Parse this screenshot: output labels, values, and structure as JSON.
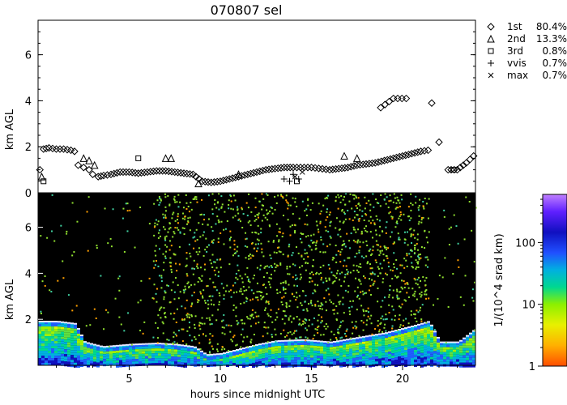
{
  "chart_data": [
    {
      "type": "scatter",
      "title": "070807 sel",
      "xlabel": "",
      "ylabel": "km AGL",
      "xlim": [
        0,
        24
      ],
      "ylim": [
        0,
        7.5
      ],
      "y_ticks": [
        0,
        2,
        4,
        6
      ],
      "grid": false,
      "legend_position": "top-right",
      "series": [
        {
          "name": "1st",
          "percent": "80.4%",
          "marker": "diamond",
          "points": [
            [
              0.1,
              1.0
            ],
            [
              0.3,
              1.9
            ],
            [
              0.6,
              1.95
            ],
            [
              1.0,
              1.9
            ],
            [
              1.4,
              1.9
            ],
            [
              1.8,
              1.85
            ],
            [
              2.0,
              1.8
            ],
            [
              2.2,
              1.2
            ],
            [
              2.5,
              1.1
            ],
            [
              2.8,
              1.0
            ],
            [
              3.0,
              0.8
            ],
            [
              3.3,
              0.7
            ],
            [
              3.6,
              0.75
            ],
            [
              4.0,
              0.8
            ],
            [
              4.5,
              0.9
            ],
            [
              5.0,
              0.9
            ],
            [
              5.5,
              0.85
            ],
            [
              6.0,
              0.9
            ],
            [
              6.5,
              0.95
            ],
            [
              7.0,
              0.95
            ],
            [
              7.5,
              0.9
            ],
            [
              8.0,
              0.85
            ],
            [
              8.5,
              0.8
            ],
            [
              9.0,
              0.5
            ],
            [
              9.5,
              0.45
            ],
            [
              10.0,
              0.5
            ],
            [
              10.5,
              0.6
            ],
            [
              11.0,
              0.7
            ],
            [
              11.5,
              0.8
            ],
            [
              12.0,
              0.9
            ],
            [
              12.5,
              1.0
            ],
            [
              13.0,
              1.05
            ],
            [
              13.5,
              1.1
            ],
            [
              14.0,
              1.1
            ],
            [
              15.0,
              1.1
            ],
            [
              16.0,
              1.0
            ],
            [
              16.5,
              1.05
            ],
            [
              17.0,
              1.1
            ],
            [
              17.5,
              1.2
            ],
            [
              18.0,
              1.25
            ],
            [
              18.5,
              1.3
            ],
            [
              19.0,
              1.4
            ],
            [
              19.5,
              1.5
            ],
            [
              20.0,
              1.6
            ],
            [
              20.5,
              1.7
            ],
            [
              21.0,
              1.8
            ],
            [
              21.4,
              1.85
            ],
            [
              21.6,
              3.9
            ],
            [
              22.0,
              2.2
            ],
            [
              22.5,
              1.0
            ],
            [
              23.0,
              1.0
            ],
            [
              23.5,
              1.3
            ],
            [
              23.9,
              1.6
            ],
            [
              18.8,
              3.7
            ],
            [
              19.5,
              4.1
            ],
            [
              20.2,
              4.1
            ]
          ]
        },
        {
          "name": "2nd",
          "percent": "13.3%",
          "marker": "triangle",
          "points": [
            [
              0.2,
              0.7
            ],
            [
              2.5,
              1.5
            ],
            [
              2.8,
              1.4
            ],
            [
              3.1,
              1.2
            ],
            [
              7.0,
              1.5
            ],
            [
              7.3,
              1.5
            ],
            [
              8.8,
              0.4
            ],
            [
              11.0,
              0.8
            ],
            [
              16.8,
              1.6
            ],
            [
              17.5,
              1.5
            ]
          ]
        },
        {
          "name": "3rd",
          "percent": "0.8%",
          "marker": "square",
          "points": [
            [
              0.3,
              0.5
            ],
            [
              5.5,
              1.5
            ],
            [
              14.2,
              0.5
            ],
            [
              22.8,
              1.0
            ]
          ]
        },
        {
          "name": "vvis",
          "percent": "0.7%",
          "marker": "plus",
          "points": [
            [
              13.5,
              0.6
            ],
            [
              14.0,
              0.8
            ],
            [
              14.3,
              0.6
            ],
            [
              13.8,
              0.5
            ]
          ]
        },
        {
          "name": "max",
          "percent": "0.7%",
          "marker": "cross",
          "points": [
            [
              14.1,
              0.7
            ],
            [
              14.5,
              0.9
            ]
          ]
        }
      ]
    },
    {
      "type": "heatmap",
      "title": "",
      "xlabel": "hours since midnight UTC",
      "ylabel": "km AGL",
      "xlim": [
        0,
        24
      ],
      "ylim": [
        0,
        7.5
      ],
      "x_ticks": [
        5,
        10,
        15,
        20
      ],
      "y_ticks": [
        2,
        4,
        6
      ],
      "colorbar": {
        "label": "1/(10^4 srad km)",
        "scale": "log",
        "range": [
          1,
          600
        ],
        "ticks": [
          1,
          10,
          100
        ],
        "tick_labels": [
          "1",
          "10",
          "100"
        ]
      },
      "cloud_base_trace": [
        [
          0.0,
          1.9
        ],
        [
          1.0,
          1.9
        ],
        [
          2.0,
          1.8
        ],
        [
          2.5,
          1.0
        ],
        [
          3.5,
          0.8
        ],
        [
          5.0,
          0.9
        ],
        [
          6.5,
          0.95
        ],
        [
          7.5,
          0.9
        ],
        [
          8.5,
          0.8
        ],
        [
          9.2,
          0.45
        ],
        [
          10.0,
          0.5
        ],
        [
          11.0,
          0.7
        ],
        [
          12.0,
          0.9
        ],
        [
          13.0,
          1.05
        ],
        [
          14.5,
          1.1
        ],
        [
          16.0,
          1.0
        ],
        [
          17.5,
          1.2
        ],
        [
          19.0,
          1.4
        ],
        [
          20.5,
          1.7
        ],
        [
          21.4,
          1.9
        ],
        [
          22.0,
          1.0
        ],
        [
          23.0,
          1.0
        ],
        [
          24.0,
          1.6
        ]
      ]
    }
  ]
}
